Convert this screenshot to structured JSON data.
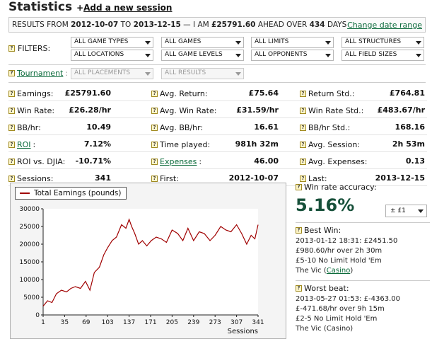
{
  "header": {
    "title": "Statistics",
    "add_plus": "+",
    "add_label": "Add a new session"
  },
  "results": {
    "prefix": "RESULTS FROM",
    "from_date": "2012-10-07",
    "to_word": "TO",
    "to_date": "2013-12-15",
    "mid": "— I AM",
    "amount": "£25791.60",
    "ahead": "AHEAD OVER",
    "days": "434",
    "days_word": "DAYS",
    "change_label": "Change date range"
  },
  "filters": {
    "label": "FILTERS:",
    "row1": [
      "ALL GAME TYPES",
      "ALL GAMES",
      "ALL LIMITS",
      "ALL STRUCTURES"
    ],
    "row2": [
      "ALL LOCATIONS",
      "ALL GAME LEVELS",
      "ALL OPPONENTS",
      "ALL FIELD SIZES"
    ]
  },
  "tournament": {
    "label": "Tournament",
    "colon": ":",
    "placements": "ALL PLACEMENTS",
    "results": "ALL RESULTS"
  },
  "stats": [
    [
      {
        "label": "Earnings:",
        "value": "£25791.60"
      },
      {
        "label": "Avg. Return:",
        "value": "£75.64"
      },
      {
        "label": "Return Std.:",
        "value": "£764.81"
      }
    ],
    [
      {
        "label": "Win Rate:",
        "value": "£26.28/hr"
      },
      {
        "label": "Avg. Win Rate:",
        "value": "£31.59/hr"
      },
      {
        "label": "Win Rate Std.:",
        "value": "£483.67/hr"
      }
    ],
    [
      {
        "label": "BB/hr:",
        "value": "10.49"
      },
      {
        "label": "Avg. BB/hr:",
        "value": "16.61"
      },
      {
        "label": "BB/hr Std.:",
        "value": "168.16"
      }
    ],
    [
      {
        "label": "ROI",
        "link": true,
        "colon": ":",
        "value": "7.12%"
      },
      {
        "label": "Time played:",
        "value": "981h 32m"
      },
      {
        "label": "Avg. Session:",
        "value": "2h 53m"
      }
    ],
    [
      {
        "label": "ROI vs. DJIA:",
        "value": "-10.71%"
      },
      {
        "label": "Expenses",
        "link": true,
        "colon": ":",
        "value": "46.00"
      },
      {
        "label": "Avg. Expenses:",
        "value": "0.13"
      }
    ],
    [
      {
        "label": "Sessions:",
        "value": "341"
      },
      {
        "label": "First:",
        "value": "2012-10-07"
      },
      {
        "label": "Last:",
        "value": "2013-12-15"
      }
    ]
  ],
  "side": {
    "accuracy_label": "Win rate accuracy:",
    "accuracy_value": "5.16%",
    "accuracy_unit": "± £1",
    "best_label": "Best Win:",
    "best_lines": [
      "2013-01-12 18:31: £2451.50",
      "£980.60/hr over 2h 30m",
      "£5-10 No Limit Hold 'Em"
    ],
    "best_venue": "The Vic (",
    "best_venue_link": "Casino",
    "best_venue_end": ")",
    "worst_label": "Worst beat:",
    "worst_lines": [
      "2013-05-27 01:53: £-4363.00",
      "£-471.68/hr over 9h 15m",
      "£2-5 No Limit Hold 'Em",
      "The Vic (Casino)"
    ]
  },
  "colors": {
    "series": "#a00000",
    "link": "#0a6a3a",
    "accuracy": "#17503a"
  },
  "chart_data": {
    "type": "line",
    "series": [
      {
        "name": "Total Earnings (pounds)"
      }
    ],
    "xlabel": "Sessions",
    "ylabel": "",
    "xlim": [
      1,
      341
    ],
    "ylim": [
      0,
      30000
    ],
    "xticks": [
      1,
      35,
      69,
      103,
      137,
      171,
      205,
      239,
      273,
      307,
      341
    ],
    "yticks": [
      0,
      5000,
      10000,
      15000,
      20000,
      25000,
      30000
    ],
    "grid": false,
    "legend": "top-left",
    "x": [
      1,
      8,
      15,
      22,
      30,
      38,
      45,
      52,
      60,
      68,
      75,
      82,
      90,
      97,
      103,
      110,
      117,
      125,
      132,
      137,
      141,
      146,
      152,
      158,
      165,
      172,
      180,
      188,
      196,
      205,
      214,
      222,
      230,
      239,
      248,
      256,
      265,
      273,
      282,
      290,
      298,
      307,
      315,
      323,
      330,
      336,
      341
    ],
    "y": [
      2500,
      4000,
      3500,
      6000,
      7000,
      6500,
      7500,
      8000,
      7500,
      9500,
      7000,
      12000,
      13500,
      17000,
      19000,
      21000,
      22000,
      25500,
      24500,
      27000,
      25000,
      23000,
      20000,
      21000,
      19500,
      21000,
      22000,
      21500,
      20500,
      24000,
      23000,
      21000,
      24500,
      21000,
      23500,
      23000,
      21000,
      22500,
      25000,
      24000,
      23500,
      25500,
      23000,
      20000,
      22500,
      21500,
      25500
    ]
  }
}
